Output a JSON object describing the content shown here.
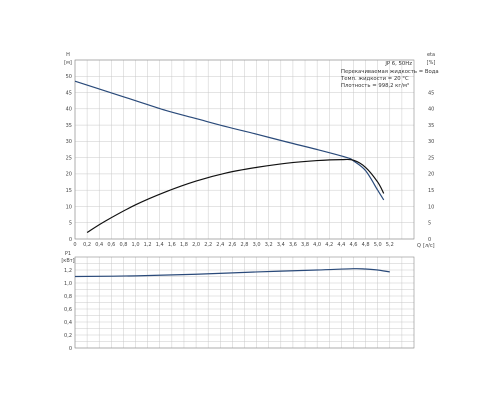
{
  "chart_data": [
    {
      "type": "line",
      "title": "",
      "xlabel": "Q",
      "x_unit": "[л/с]",
      "ylabel": "H",
      "y_unit": "[м]",
      "y2label": "eta",
      "y2_unit": "[%]",
      "xlim": [
        0,
        5.6
      ],
      "ylim": [
        0,
        55
      ],
      "y2lim": [
        0,
        55
      ],
      "x_ticks": [
        "0",
        "0,2",
        "0,4",
        "0,6",
        "0,8",
        "1,0",
        "1,2",
        "1,4",
        "1,6",
        "1,8",
        "2,0",
        "2,2",
        "2,4",
        "2,6",
        "2,8",
        "3,0",
        "3,2",
        "3,4",
        "3,6",
        "3,8",
        "4,0",
        "4,2",
        "4,4",
        "4,6",
        "4,8",
        "5,0",
        "5,2"
      ],
      "y_ticks": [
        "0",
        "5",
        "10",
        "15",
        "20",
        "25",
        "30",
        "35",
        "40",
        "45",
        "50"
      ],
      "y2_ticks": [
        "0",
        "5",
        "10",
        "15",
        "20",
        "25",
        "30",
        "35",
        "40",
        "45"
      ],
      "grid": true,
      "series": [
        {
          "axis": "left",
          "color": "#2a4a7a",
          "x": [
            0,
            0.5,
            1.0,
            1.5,
            2.0,
            2.5,
            3.0,
            3.5,
            4.0,
            4.5,
            4.6,
            4.8,
            5.0,
            5.1
          ],
          "y": [
            48.5,
            45.5,
            42.5,
            39.5,
            37,
            34.5,
            32.2,
            29.8,
            27.5,
            25,
            24,
            21,
            15,
            12
          ]
        },
        {
          "axis": "right",
          "color": "#111111",
          "x": [
            0.2,
            0.5,
            1.0,
            1.5,
            2.0,
            2.5,
            3.0,
            3.5,
            4.0,
            4.4,
            4.6,
            4.8,
            5.0,
            5.1
          ],
          "y": [
            2,
            5.5,
            10.5,
            14.5,
            17.8,
            20.3,
            22,
            23.3,
            24.1,
            24.4,
            24.2,
            22,
            17.5,
            14
          ]
        }
      ],
      "info": {
        "pump": "JP 6, 50Hz",
        "lines": [
          "Перекачиваемая жидкость = Вода",
          "Темп. жидкости = 20 °C",
          "Плотность = 998,2 кг/м³"
        ]
      }
    },
    {
      "type": "line",
      "title": "",
      "xlabel": "",
      "ylabel": "P1",
      "y_unit": "[кВт]",
      "xlim": [
        0,
        5.6
      ],
      "ylim": [
        0,
        1.4
      ],
      "y_ticks": [
        "0",
        "0,2",
        "0,4",
        "0,6",
        "0,8",
        "1,0",
        "1,2"
      ],
      "grid": true,
      "series": [
        {
          "color": "#2a4a7a",
          "x": [
            0,
            1.0,
            2.0,
            3.0,
            4.0,
            4.6,
            4.8,
            5.0,
            5.2
          ],
          "y": [
            1.1,
            1.11,
            1.135,
            1.17,
            1.2,
            1.22,
            1.215,
            1.2,
            1.17
          ]
        }
      ]
    }
  ]
}
